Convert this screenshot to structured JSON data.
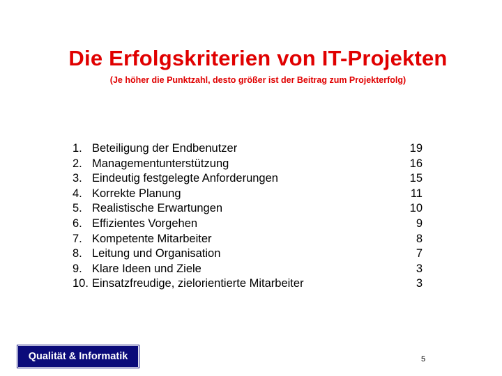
{
  "slide": {
    "title": "Die Erfolgskriterien von IT-Projekten",
    "subtitle": "(Je höher die Punktzahl, desto größer ist der Beitrag zum Projekterfolg)",
    "items": [
      {
        "number": "1.",
        "label": "Beteiligung der Endbenutzer",
        "points": "19"
      },
      {
        "number": "2.",
        "label": "Managementunterstützung",
        "points": "16"
      },
      {
        "number": "3.",
        "label": "Eindeutig festgelegte Anforderungen",
        "points": "15"
      },
      {
        "number": "4.",
        "label": "Korrekte Planung",
        "points": "11"
      },
      {
        "number": "5.",
        "label": "Realistische Erwartungen",
        "points": "10"
      },
      {
        "number": "6.",
        "label": "Effizientes Vorgehen",
        "points": "9"
      },
      {
        "number": "7.",
        "label": "Kompetente Mitarbeiter",
        "points": "8"
      },
      {
        "number": "8.",
        "label": "Leitung und Organisation",
        "points": "7"
      },
      {
        "number": "9.",
        "label": "Klare Ideen und Ziele",
        "points": "3"
      },
      {
        "number": "10.",
        "label": "Einsatzfreudige, zielorientierte Mitarbeiter",
        "points": "3"
      }
    ],
    "logo_text": "Qualität & Informatik",
    "page_number": "5"
  },
  "colors": {
    "title": "#e00000",
    "logo_background": "#0b0b7a",
    "logo_text": "#ffffff"
  }
}
